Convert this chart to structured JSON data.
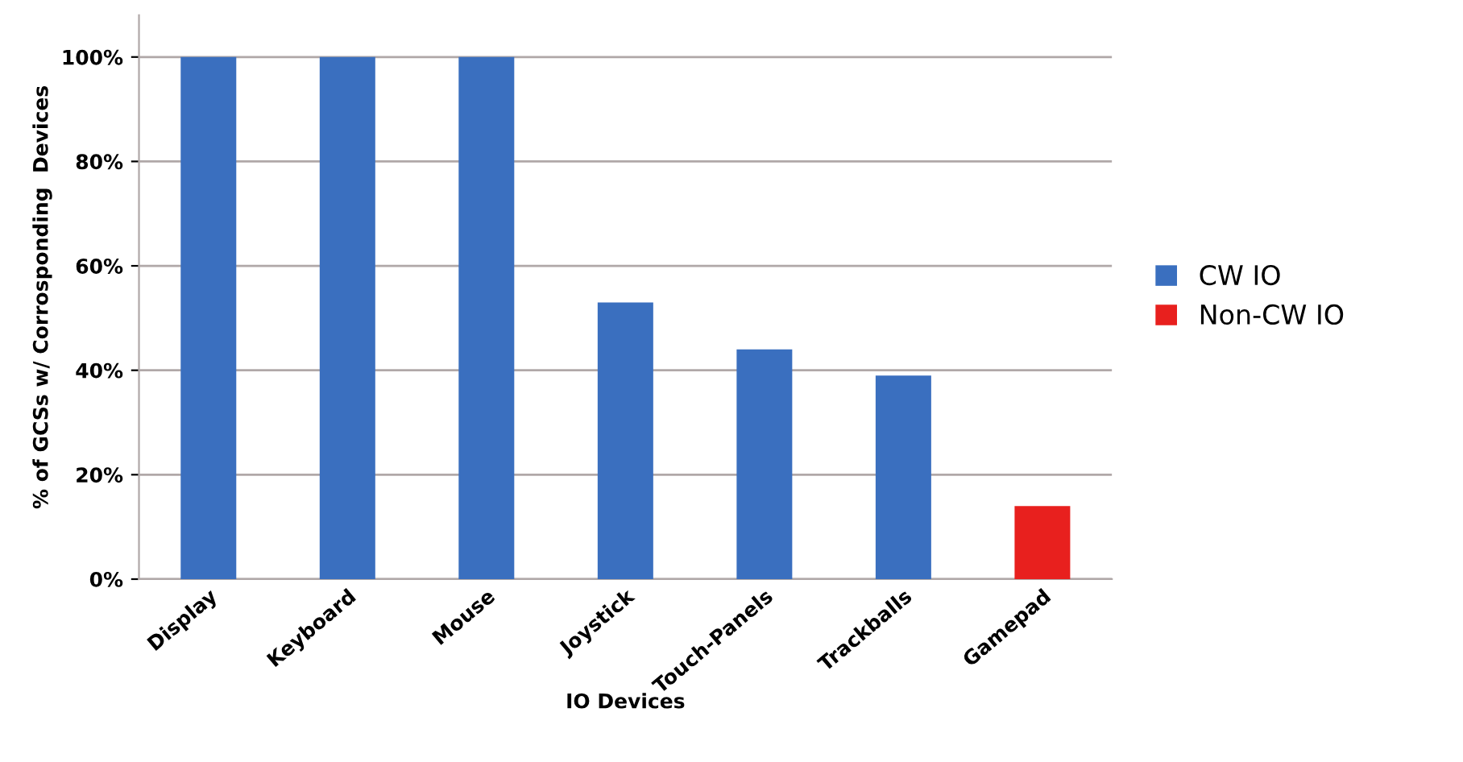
{
  "chart_data": {
    "type": "bar",
    "xlabel": "IO Devices",
    "ylabel": "% of GCSs w/ Corrosponding  Devices",
    "categories": [
      "Display",
      "Keyboard",
      "Mouse",
      "Joystick",
      "Touch-Panels",
      "Trackballs",
      "Gamepad"
    ],
    "series": [
      {
        "name": "CW IO",
        "color": "#3a6fbf",
        "values": [
          100,
          100,
          100,
          53,
          44,
          39,
          null
        ]
      },
      {
        "name": "Non-CW IO",
        "color": "#e8201e",
        "values": [
          null,
          null,
          null,
          null,
          null,
          null,
          14
        ]
      }
    ],
    "ylim": [
      0,
      108
    ],
    "yticks": [
      {
        "value": 0,
        "label": "0%"
      },
      {
        "value": 20,
        "label": "20%"
      },
      {
        "value": 40,
        "label": "40%"
      },
      {
        "value": 60,
        "label": "60%"
      },
      {
        "value": 80,
        "label": "80%"
      },
      {
        "value": 100,
        "label": "100%"
      }
    ],
    "grid": "y",
    "legend": "right"
  }
}
